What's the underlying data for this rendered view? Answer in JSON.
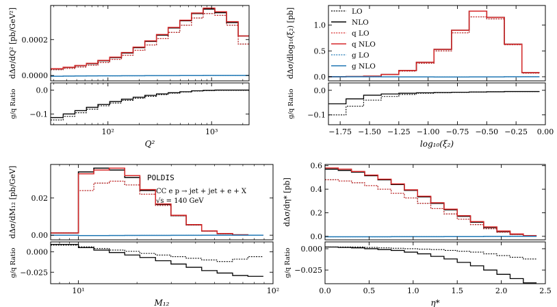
{
  "figure_annotation": {
    "generator": "POLDIS",
    "process": "CC  e p → jet + jet + e + X",
    "energy": "√s = 140 GeV"
  },
  "legend_title": "",
  "chart_data": [
    {
      "id": "q2",
      "type": "line",
      "step": true,
      "xscale": "log",
      "xlabel": "Q²",
      "ylabel": "dΔσ/dQ² [pb/GeV²]",
      "ratio_ylabel": "g/q Ratio",
      "xlim": [
        28,
        2300
      ],
      "ylim": [
        -3e-05,
        0.00039
      ],
      "ratio_ylim": [
        -0.145,
        0.03
      ],
      "xticks": [
        {
          "v": 100,
          "label": "10²"
        },
        {
          "v": 1000,
          "label": "10³"
        }
      ],
      "yticks": [
        {
          "v": 0,
          "label": "0.0000"
        },
        {
          "v": 0.0002,
          "label": "0.0002"
        }
      ],
      "ratio_yticks": [
        {
          "v": 0,
          "label": "0.0"
        },
        {
          "v": -0.1,
          "label": "−0.1"
        }
      ],
      "bin_edges": [
        28,
        37,
        48,
        62,
        80,
        104,
        135,
        175,
        227,
        294,
        381,
        494,
        640,
        830,
        1075,
        1394,
        1806,
        2300
      ],
      "series": [
        {
          "name": "LO",
          "values": [
            3.2e-05,
            3.9e-05,
            4.7e-05,
            5.7e-05,
            7.2e-05,
            9e-05,
            0.000113,
            0.00014,
            0.00017,
            0.000205,
            0.00024,
            0.00028,
            0.00032,
            0.000345,
            0.000335,
            0.00028,
            0.000175
          ]
        },
        {
          "name": "NLO",
          "values": [
            3.7e-05,
            4.5e-05,
            5.5e-05,
            6.6e-05,
            8.2e-05,
            0.0001,
            0.000125,
            0.000155,
            0.00019,
            0.000225,
            0.000265,
            0.000305,
            0.000345,
            0.00037,
            0.00035,
            0.000295,
            0.00022
          ]
        },
        {
          "name": "q LO",
          "values": [
            3.2e-05,
            3.9e-05,
            4.7e-05,
            5.7e-05,
            7.2e-05,
            9e-05,
            0.000113,
            0.00014,
            0.00017,
            0.000205,
            0.00024,
            0.00028,
            0.00032,
            0.000345,
            0.000335,
            0.00028,
            0.000175
          ]
        },
        {
          "name": "q NLO",
          "values": [
            3.8e-05,
            4.6e-05,
            5.6e-05,
            6.8e-05,
            8.4e-05,
            0.000102,
            0.000128,
            0.000158,
            0.000193,
            0.000228,
            0.000268,
            0.000308,
            0.000348,
            0.000375,
            0.000355,
            0.0003,
            0.00022
          ]
        },
        {
          "name": "g LO",
          "values": [
            -4e-06,
            -3.5e-06,
            -3e-06,
            -2.5e-06,
            -2e-06,
            -2e-06,
            -1.5e-06,
            -1.5e-06,
            -1e-06,
            -1e-06,
            -1e-06,
            -5e-07,
            -5e-07,
            0,
            0,
            0,
            0
          ]
        },
        {
          "name": "g NLO",
          "values": [
            -4e-06,
            -3.5e-06,
            -3e-06,
            -2.5e-06,
            -2e-06,
            -2e-06,
            -1.5e-06,
            -1.5e-06,
            -1e-06,
            -1e-06,
            -1e-06,
            -5e-07,
            -5e-07,
            0,
            0,
            0,
            0
          ]
        }
      ],
      "ratio_series": [
        {
          "name": "LO",
          "values": [
            -0.125,
            -0.11,
            -0.095,
            -0.08,
            -0.066,
            -0.054,
            -0.043,
            -0.034,
            -0.026,
            -0.019,
            -0.013,
            -0.008,
            -0.004,
            -0.002,
            -0.001,
            -0.001,
            -0.001
          ]
        },
        {
          "name": "NLO",
          "values": [
            -0.115,
            -0.1,
            -0.086,
            -0.072,
            -0.06,
            -0.048,
            -0.038,
            -0.03,
            -0.022,
            -0.016,
            -0.011,
            -0.007,
            -0.003,
            -0.001,
            0,
            0,
            0
          ]
        }
      ]
    },
    {
      "id": "xi2",
      "type": "line",
      "step": true,
      "xscale": "linear",
      "xlabel": "log₁₀(ξ₂)",
      "ylabel": "dΔσ/dlog₁₀(ξ₂) [pb]",
      "ratio_ylabel": "g/q Ratio",
      "xlim": [
        -1.85,
        0.0
      ],
      "ylim": [
        -0.08,
        1.38
      ],
      "ratio_ylim": [
        -0.14,
        0.03
      ],
      "xticks": [
        {
          "v": -1.75,
          "label": "−1.75"
        },
        {
          "v": -1.5,
          "label": "−1.50"
        },
        {
          "v": -1.25,
          "label": "−1.25"
        },
        {
          "v": -1.0,
          "label": "−1.00"
        },
        {
          "v": -0.75,
          "label": "−0.75"
        },
        {
          "v": -0.5,
          "label": "−0.50"
        },
        {
          "v": -0.25,
          "label": "−0.25"
        },
        {
          "v": 0.0,
          "label": "0.00"
        }
      ],
      "yticks": [
        {
          "v": 0,
          "label": "0.0"
        },
        {
          "v": 0.5,
          "label": "0.5"
        },
        {
          "v": 1.0,
          "label": "1.0"
        }
      ],
      "ratio_yticks": [
        {
          "v": 0,
          "label": "0.0"
        },
        {
          "v": -0.1,
          "label": "−0.1"
        }
      ],
      "bin_edges": [
        -1.85,
        -1.7,
        -1.55,
        -1.4,
        -1.25,
        -1.1,
        -0.95,
        -0.8,
        -0.65,
        -0.5,
        -0.35,
        -0.2,
        -0.05
      ],
      "series": [
        {
          "name": "LO",
          "values": [
            0,
            0.003,
            0.01,
            0.04,
            0.11,
            0.26,
            0.5,
            0.85,
            1.16,
            1.12,
            0.62,
            0.07
          ]
        },
        {
          "name": "NLO",
          "values": [
            0,
            0.004,
            0.012,
            0.045,
            0.12,
            0.28,
            0.53,
            0.9,
            1.27,
            1.15,
            0.63,
            0.08
          ]
        },
        {
          "name": "q LO",
          "values": [
            0,
            0.003,
            0.01,
            0.04,
            0.11,
            0.26,
            0.5,
            0.85,
            1.16,
            1.12,
            0.62,
            0.07
          ]
        },
        {
          "name": "q NLO",
          "values": [
            0,
            0.004,
            0.012,
            0.045,
            0.12,
            0.28,
            0.53,
            0.9,
            1.27,
            1.15,
            0.63,
            0.08
          ]
        },
        {
          "name": "g LO",
          "values": [
            0,
            0,
            -0.001,
            -0.002,
            -0.003,
            -0.004,
            -0.005,
            -0.005,
            -0.004,
            -0.003,
            -0.001,
            0
          ]
        },
        {
          "name": "g NLO",
          "values": [
            0,
            0,
            -0.001,
            -0.002,
            -0.003,
            -0.004,
            -0.005,
            -0.005,
            -0.004,
            -0.003,
            -0.001,
            0
          ]
        }
      ],
      "ratio_series": [
        {
          "name": "LO",
          "values": [
            -0.1,
            -0.065,
            -0.04,
            -0.025,
            -0.017,
            -0.012,
            -0.01,
            -0.008,
            -0.007,
            -0.006,
            -0.005,
            -0.005
          ]
        },
        {
          "name": "NLO",
          "values": [
            -0.055,
            -0.035,
            -0.02,
            -0.015,
            -0.012,
            -0.01,
            -0.009,
            -0.008,
            -0.007,
            -0.006,
            -0.005,
            -0.005
          ]
        }
      ]
    },
    {
      "id": "m12",
      "type": "line",
      "step": true,
      "xscale": "log",
      "xlabel": "M₁₂",
      "ylabel": "dΔσ/dM₁₂ [pb/GeV]",
      "ratio_ylabel": "g/q Ratio",
      "xlim": [
        7.2,
        100
      ],
      "ylim": [
        -0.0025,
        0.038
      ],
      "ratio_ylim": [
        -0.039,
        0.012
      ],
      "xticks": [
        {
          "v": 10,
          "label": "10¹"
        },
        {
          "v": 100,
          "label": "10²"
        }
      ],
      "yticks": [
        {
          "v": 0,
          "label": "0.00"
        },
        {
          "v": 0.02,
          "label": "0.02"
        }
      ],
      "ratio_yticks": [
        {
          "v": 0,
          "label": "0.000"
        },
        {
          "v": -0.025,
          "label": "−0.025"
        }
      ],
      "bin_edges": [
        7.2,
        10,
        12,
        14.4,
        17.3,
        20.7,
        24.9,
        29.9,
        35.8,
        43,
        51.6,
        62,
        74.3,
        89.2
      ],
      "series": [
        {
          "name": "LO",
          "values": [
            0.0012,
            0.024,
            0.028,
            0.029,
            0.027,
            0.022,
            0.016,
            0.0105,
            0.0055,
            0.0022,
            0.0008,
            0.0002,
            0
          ]
        },
        {
          "name": "NLO",
          "values": [
            0.0012,
            0.034,
            0.036,
            0.035,
            0.031,
            0.024,
            0.0165,
            0.0105,
            0.0055,
            0.0022,
            0.0008,
            0.0002,
            0
          ]
        },
        {
          "name": "q LO",
          "values": [
            0.0012,
            0.024,
            0.028,
            0.029,
            0.027,
            0.022,
            0.016,
            0.0105,
            0.0055,
            0.0022,
            0.0008,
            0.0002,
            0
          ]
        },
        {
          "name": "q NLO",
          "values": [
            0.0012,
            0.033,
            0.035,
            0.036,
            0.032,
            0.0245,
            0.0168,
            0.0107,
            0.0057,
            0.0023,
            0.0009,
            0.0002,
            0
          ]
        },
        {
          "name": "g LO",
          "values": [
            0,
            -0.0002,
            -0.0002,
            -0.00015,
            -0.00012,
            -0.0001,
            -0.0001,
            -8e-05,
            -5e-05,
            -3e-05,
            -1e-05,
            0,
            0
          ]
        },
        {
          "name": "g NLO",
          "values": [
            0,
            -0.0002,
            -0.0002,
            -0.00015,
            -0.00012,
            -0.0001,
            -0.0001,
            -8e-05,
            -5e-05,
            -3e-05,
            -1e-05,
            0,
            0
          ]
        }
      ],
      "ratio_series": [
        {
          "name": "LO",
          "values": [
            0.008,
            0.006,
            0.004,
            0.002,
            0.0005,
            -0.002,
            -0.004,
            -0.006,
            -0.008,
            -0.01,
            -0.012,
            -0.009,
            -0.006
          ]
        },
        {
          "name": "NLO",
          "values": [
            0.009,
            0.005,
            0.002,
            -0.001,
            -0.004,
            -0.007,
            -0.011,
            -0.015,
            -0.019,
            -0.023,
            -0.026,
            -0.029,
            -0.03
          ]
        }
      ]
    },
    {
      "id": "eta",
      "type": "line",
      "step": true,
      "xscale": "linear",
      "xlabel": "η*",
      "ylabel": "dΔσ/dη* [pb]",
      "ratio_ylabel": "g/q Ratio",
      "xlim": [
        0,
        2.5
      ],
      "ylim": [
        -0.03,
        0.61
      ],
      "ratio_ylim": [
        -0.041,
        0.008
      ],
      "xticks": [
        {
          "v": 0,
          "label": "0.0"
        },
        {
          "v": 0.5,
          "label": "0.5"
        },
        {
          "v": 1.0,
          "label": "1.0"
        },
        {
          "v": 1.5,
          "label": "1.5"
        },
        {
          "v": 2.0,
          "label": "2.0"
        },
        {
          "v": 2.5,
          "label": "2.5"
        }
      ],
      "yticks": [
        {
          "v": 0,
          "label": "0.0"
        },
        {
          "v": 0.2,
          "label": "0.2"
        },
        {
          "v": 0.4,
          "label": "0.4"
        },
        {
          "v": 0.6,
          "label": "0.6"
        }
      ],
      "ratio_yticks": [
        {
          "v": 0,
          "label": "0.000"
        },
        {
          "v": -0.025,
          "label": "−0.025"
        }
      ],
      "bin_edges": [
        0,
        0.15,
        0.3,
        0.45,
        0.6,
        0.75,
        0.9,
        1.05,
        1.2,
        1.35,
        1.5,
        1.65,
        1.8,
        1.95,
        2.1,
        2.25,
        2.4
      ],
      "series": [
        {
          "name": "LO",
          "values": [
            0.48,
            0.47,
            0.455,
            0.43,
            0.4,
            0.365,
            0.325,
            0.28,
            0.235,
            0.19,
            0.145,
            0.1,
            0.065,
            0.035,
            0.015,
            0.004
          ]
        },
        {
          "name": "NLO",
          "values": [
            0.57,
            0.56,
            0.545,
            0.515,
            0.48,
            0.44,
            0.39,
            0.335,
            0.28,
            0.225,
            0.17,
            0.12,
            0.075,
            0.04,
            0.017,
            0.005
          ]
        },
        {
          "name": "q LO",
          "values": [
            0.48,
            0.47,
            0.455,
            0.43,
            0.4,
            0.365,
            0.325,
            0.28,
            0.235,
            0.19,
            0.145,
            0.1,
            0.065,
            0.035,
            0.015,
            0.004
          ]
        },
        {
          "name": "q NLO",
          "values": [
            0.58,
            0.57,
            0.55,
            0.52,
            0.485,
            0.445,
            0.395,
            0.34,
            0.285,
            0.23,
            0.175,
            0.125,
            0.08,
            0.045,
            0.02,
            0.006
          ]
        },
        {
          "name": "g LO",
          "values": [
            -0.004,
            -0.004,
            -0.004,
            -0.004,
            -0.004,
            -0.003,
            -0.003,
            -0.003,
            -0.003,
            -0.002,
            -0.002,
            -0.002,
            -0.001,
            -0.001,
            0,
            0
          ]
        },
        {
          "name": "g NLO",
          "values": [
            -0.004,
            -0.004,
            -0.004,
            -0.004,
            -0.004,
            -0.003,
            -0.003,
            -0.003,
            -0.003,
            -0.002,
            -0.002,
            -0.002,
            -0.001,
            -0.001,
            0,
            0
          ]
        }
      ],
      "ratio_series": [
        {
          "name": "LO",
          "values": [
            0.002,
            0.002,
            0.002,
            0.0015,
            0.001,
            0.0005,
            0,
            -0.0005,
            -0.001,
            -0.002,
            -0.003,
            -0.004,
            -0.006,
            -0.008,
            -0.01,
            -0.012
          ]
        },
        {
          "name": "NLO",
          "values": [
            0.002,
            0.0015,
            0.001,
            0,
            -0.001,
            -0.002,
            -0.004,
            -0.006,
            -0.009,
            -0.012,
            -0.016,
            -0.02,
            -0.025,
            -0.03,
            -0.035,
            -0.04
          ]
        }
      ]
    }
  ],
  "legend": [
    {
      "name": "LO",
      "color": "#000000",
      "dash": "dotted"
    },
    {
      "name": "NLO",
      "color": "#000000",
      "dash": "solid"
    },
    {
      "name": "q LO",
      "color": "#d62728",
      "dash": "dotted"
    },
    {
      "name": "q NLO",
      "color": "#d62728",
      "dash": "solid"
    },
    {
      "name": "g LO",
      "color": "#1f77b4",
      "dash": "dotted"
    },
    {
      "name": "g NLO",
      "color": "#1f77b4",
      "dash": "solid"
    }
  ],
  "colors": {
    "black": "#000000",
    "quark": "#d62728",
    "gluon": "#1f77b4"
  }
}
